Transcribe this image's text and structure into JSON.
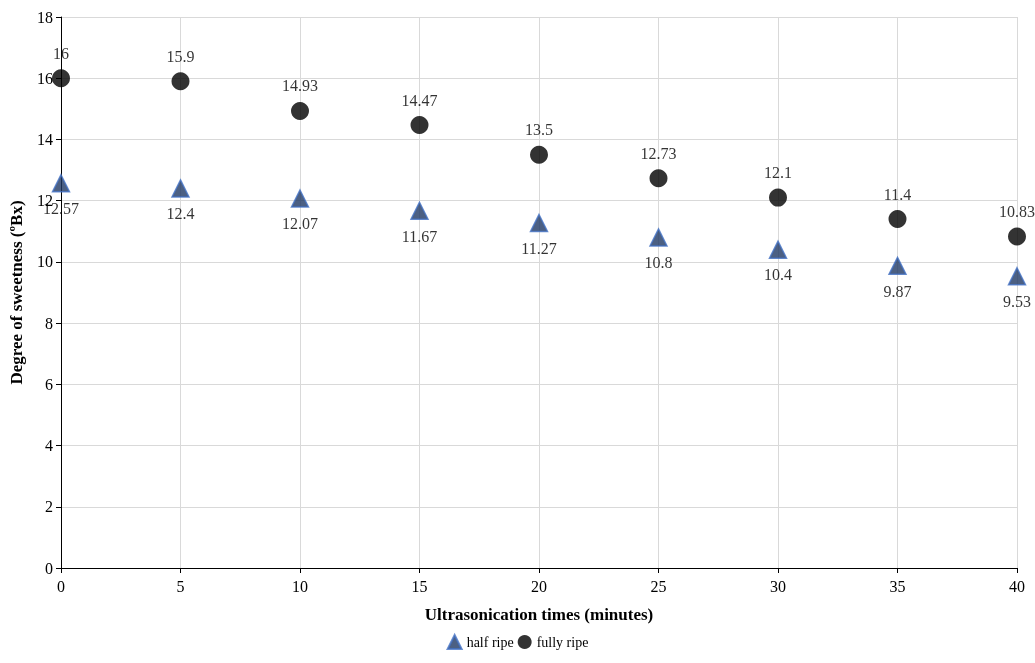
{
  "chart_data": {
    "type": "scatter",
    "xlabel": "Ultrasonication times (minutes)",
    "ylabel": "Degree of sweetness (ºBx)",
    "x": [
      0,
      5,
      10,
      15,
      20,
      25,
      30,
      35,
      40
    ],
    "series": [
      {
        "name": "half ripe",
        "color": "#1f3864",
        "marker": "triangle",
        "values": [
          12.57,
          12.4,
          12.07,
          11.67,
          11.27,
          10.8,
          10.4,
          9.87,
          9.53
        ]
      },
      {
        "name": "fully ripe",
        "color": "#000000",
        "marker": "circle",
        "values": [
          16,
          15.9,
          14.93,
          14.47,
          13.5,
          12.73,
          12.1,
          11.4,
          10.83
        ]
      }
    ],
    "xlim": [
      0,
      40
    ],
    "xticks": [
      0,
      5,
      10,
      15,
      20,
      25,
      30,
      35,
      40
    ],
    "ylim": [
      0,
      18
    ],
    "yticks": [
      0,
      2,
      4,
      6,
      8,
      10,
      12,
      14,
      16,
      18
    ],
    "grid": true,
    "legend": "bottom",
    "data_labels": true
  }
}
